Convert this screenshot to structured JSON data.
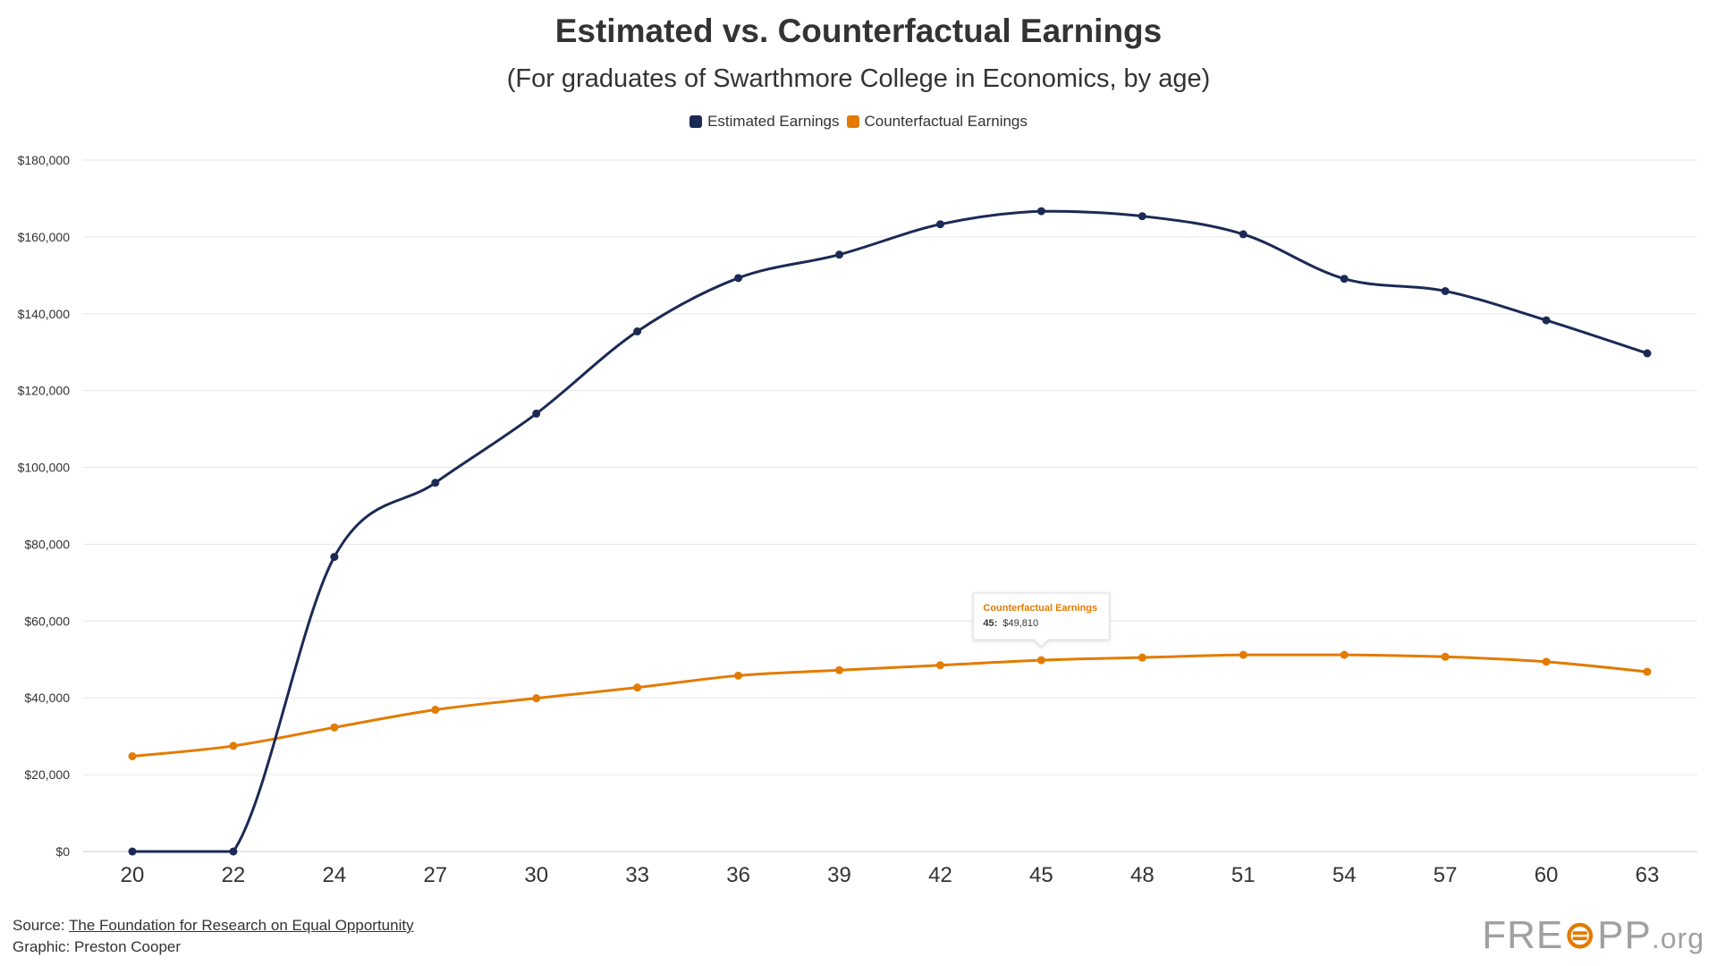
{
  "chart_data": {
    "type": "line",
    "title": "Estimated vs. Counterfactual Earnings",
    "subtitle": "(For graduates of Swarthmore College in Economics, by age)",
    "xlabel": "",
    "ylabel": "",
    "categories": [
      20,
      22,
      24,
      27,
      30,
      33,
      36,
      39,
      42,
      45,
      48,
      51,
      54,
      57,
      60,
      63
    ],
    "x_tick_labels": [
      "20",
      "22",
      "24",
      "27",
      "30",
      "33",
      "36",
      "39",
      "42",
      "45",
      "48",
      "51",
      "54",
      "57",
      "60",
      "63"
    ],
    "ylim": [
      0,
      180000
    ],
    "y_ticks": [
      0,
      20000,
      40000,
      60000,
      80000,
      100000,
      120000,
      140000,
      160000,
      180000
    ],
    "y_tick_labels": [
      "$0",
      "$20,000",
      "$40,000",
      "$60,000",
      "$80,000",
      "$100,000",
      "$120,000",
      "$140,000",
      "$160,000",
      "$180,000"
    ],
    "grid": true,
    "legend_position": "top-center",
    "series": [
      {
        "name": "Estimated Earnings",
        "color": "#1b2a55",
        "values": [
          0,
          0,
          76700,
          96000,
          114000,
          135400,
          149300,
          155400,
          163300,
          166700,
          165400,
          160700,
          149100,
          145900,
          138300,
          129700
        ]
      },
      {
        "name": "Counterfactual Earnings",
        "color": "#e37b00",
        "values": [
          24800,
          27500,
          32300,
          36900,
          39900,
          42700,
          45800,
          47200,
          48500,
          49810,
          50500,
          51200,
          51200,
          50700,
          49400,
          46800
        ]
      }
    ],
    "tooltip": {
      "series_name": "Counterfactual Earnings",
      "age_label": "45:",
      "value_text": "$49,810"
    }
  },
  "footer": {
    "source_label": "Source:",
    "source_link_text": "The Foundation for Research on Equal Opportunity",
    "credit": "Graphic: Preston Cooper"
  },
  "brand": {
    "part1": "FRE",
    "mark": "⊜",
    "part2": "PP",
    "suffix": ".org"
  },
  "colors": {
    "grid": "#e6e6e6",
    "axis_text": "#333333"
  }
}
